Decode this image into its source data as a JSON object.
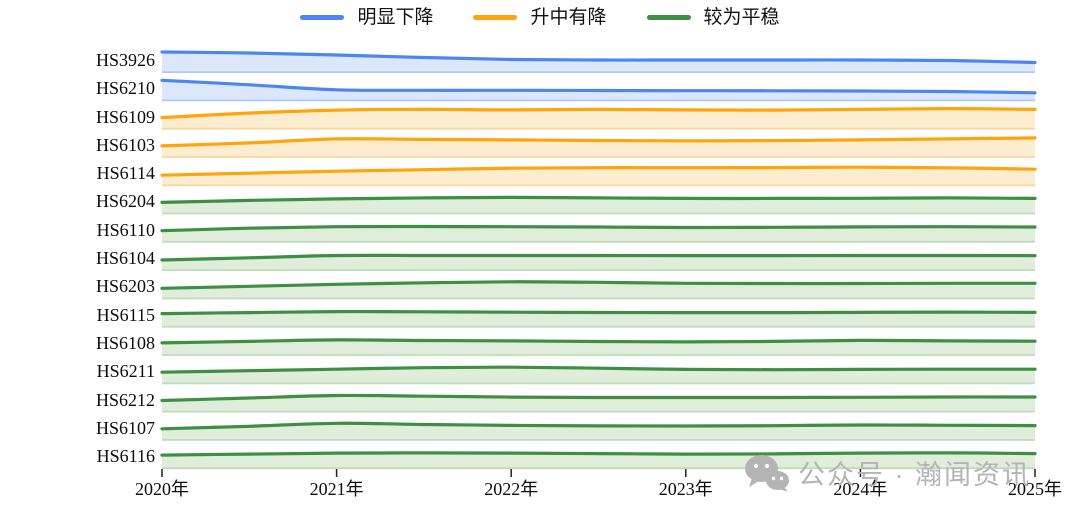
{
  "legend": {
    "items": [
      {
        "label": "明显下降",
        "color": "#4C86F0"
      },
      {
        "label": "升中有降",
        "color": "#FFA40B"
      },
      {
        "label": "较为平稳",
        "color": "#3E8E44"
      }
    ]
  },
  "watermark": {
    "text": "公众号 · 瀚闻资讯",
    "icon": "wechat-icon"
  },
  "chart_data": {
    "type": "area",
    "variant": "ridgeline",
    "title": "",
    "xlabel": "",
    "ylabel": "",
    "grid": false,
    "legend_position": "top-center",
    "x": [
      2020,
      2020.5,
      2021,
      2021.5,
      2022,
      2022.5,
      2023,
      2023.5,
      2024,
      2024.5,
      2025
    ],
    "xlim": [
      2020,
      2025
    ],
    "x_tick_labels": [
      "2020年",
      "2021年",
      "2022年",
      "2023年",
      "2024年",
      "2025年"
    ],
    "value_note": "relative band height (ridgeline), same scale for all series",
    "groups": {
      "明显下降": {
        "line": "#4C86F0",
        "fill": "#DCE7FB",
        "edge": "#AECBF8"
      },
      "升中有降": {
        "line": "#FFA40B",
        "fill": "#FDEDD0",
        "edge": "#FAD6A0"
      },
      "较为平稳": {
        "line": "#3E8E44",
        "fill": "#E1EDDB",
        "edge": "#BFDCBD"
      }
    },
    "series": [
      {
        "name": "HS3926",
        "group": "明显下降",
        "values": [
          21,
          20,
          18,
          15.5,
          13.5,
          13,
          13,
          13,
          13,
          12.5,
          10.5
        ]
      },
      {
        "name": "HS6210",
        "group": "明显下降",
        "values": [
          21,
          16.5,
          11.5,
          11,
          11,
          10.8,
          10.6,
          10.5,
          10.3,
          9.8,
          8.5
        ]
      },
      {
        "name": "HS6109",
        "group": "升中有降",
        "values": [
          12,
          16.5,
          19.5,
          20.3,
          19.7,
          20.2,
          19.7,
          19.5,
          20.2,
          21,
          20.2
        ]
      },
      {
        "name": "HS6103",
        "group": "升中有降",
        "values": [
          12,
          15,
          19,
          18.5,
          18,
          17.4,
          17,
          17.3,
          18,
          19,
          20
        ]
      },
      {
        "name": "HS6114",
        "group": "升中有降",
        "values": [
          11,
          13,
          15,
          16.5,
          18,
          18.5,
          18.5,
          18.6,
          19,
          18.4,
          17
        ]
      },
      {
        "name": "HS6204",
        "group": "较为平稳",
        "values": [
          12,
          14,
          15.5,
          16.5,
          17,
          16.5,
          16,
          16,
          16.2,
          16.5,
          16
        ]
      },
      {
        "name": "HS6110",
        "group": "较为平稳",
        "values": [
          12,
          14.5,
          16,
          16.2,
          16,
          15.7,
          15.2,
          15.4,
          15.8,
          16,
          15.7
        ]
      },
      {
        "name": "HS6104",
        "group": "较为平稳",
        "values": [
          11,
          13.2,
          15.5,
          15.5,
          15.5,
          15.5,
          15.4,
          15.4,
          15.5,
          15.5,
          15.4
        ]
      },
      {
        "name": "HS6203",
        "group": "较为平稳",
        "values": [
          11,
          13,
          15,
          16.5,
          17.5,
          17,
          16,
          15.8,
          15.8,
          16,
          16
        ]
      },
      {
        "name": "HS6115",
        "group": "较为平稳",
        "values": [
          14,
          15,
          16,
          15.8,
          15.4,
          15.1,
          15,
          15,
          15.2,
          15.5,
          15.2
        ]
      },
      {
        "name": "HS6108",
        "group": "较为平稳",
        "values": [
          13,
          14.5,
          16,
          15.4,
          15,
          14.4,
          14,
          14.5,
          15.5,
          15,
          14.7
        ]
      },
      {
        "name": "HS6211",
        "group": "较为平稳",
        "values": [
          12,
          13.5,
          15,
          16.5,
          17,
          16,
          14.8,
          14.5,
          14.8,
          15,
          15
        ]
      },
      {
        "name": "HS6212",
        "group": "较为平稳",
        "values": [
          12,
          14.5,
          17,
          16.3,
          15.4,
          15,
          15,
          15,
          15.2,
          15.5,
          15.5
        ]
      },
      {
        "name": "HS6107",
        "group": "较为平稳",
        "values": [
          12,
          14.5,
          17.5,
          16.3,
          15.4,
          14.9,
          14.8,
          15.1,
          15.8,
          15.5,
          15.2
        ]
      },
      {
        "name": "HS6116",
        "group": "较为平稳",
        "values": [
          14,
          15,
          16,
          16.2,
          16,
          15.5,
          15,
          15.2,
          16,
          16.2,
          15.5
        ]
      }
    ]
  }
}
